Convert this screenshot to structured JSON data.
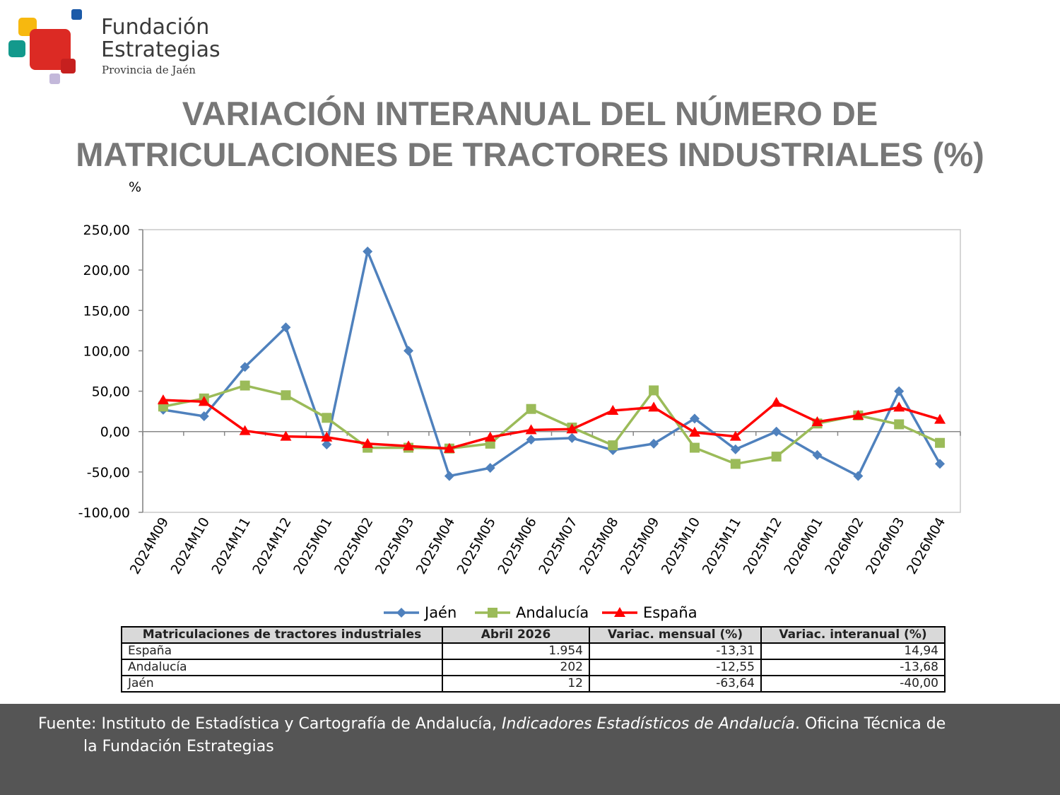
{
  "logo": {
    "line1": "Fundación",
    "line2": "Estrategias",
    "line3": "Provincia de Jaén"
  },
  "title_line1": "VARIACIÓN INTERANUAL DEL NÚMERO DE",
  "title_line2": "MATRICULACIONES DE TRACTORES INDUSTRIALES (%)",
  "chart_data": {
    "type": "line",
    "title": "VARIACIÓN INTERANUAL DEL NÚMERO DE MATRICULACIONES DE TRACTORES INDUSTRIALES (%)",
    "ylabel": "%",
    "xlabel": "",
    "ylim": [
      -100,
      250
    ],
    "yticks": [
      250,
      200,
      150,
      100,
      50,
      0,
      -50,
      -100
    ],
    "ytick_labels": [
      "250,00",
      "200,00",
      "150,00",
      "100,00",
      "50,00",
      "0,00",
      "-50,00",
      "-100,00"
    ],
    "grid": false,
    "legend_position": "bottom",
    "categories": [
      "2024M09",
      "2024M10",
      "2024M11",
      "2024M12",
      "2025M01",
      "2025M02",
      "2025M03",
      "2025M04",
      "2025M05",
      "2025M06",
      "2025M07",
      "2025M08",
      "2025M09",
      "2025M10",
      "2025M11",
      "2025M12",
      "2026M01",
      "2026M02",
      "2026M03",
      "2026M04"
    ],
    "series": [
      {
        "name": "Jaén",
        "color": "#4f81bd",
        "marker": "diamond",
        "values": [
          27,
          19,
          80,
          129,
          -16,
          223,
          100,
          -55,
          -45,
          -10,
          -8,
          -23,
          -15,
          16,
          -22,
          0,
          -29,
          -55,
          50,
          -40
        ]
      },
      {
        "name": "Andalucía",
        "color": "#9bbb59",
        "marker": "square",
        "values": [
          31,
          41,
          57,
          45,
          17,
          -20,
          -20,
          -21,
          -15,
          28,
          5,
          -17,
          51,
          -20,
          -40,
          -31,
          10,
          20,
          9,
          -14
        ]
      },
      {
        "name": "España",
        "color": "#ff0000",
        "marker": "triangle",
        "values": [
          39,
          37,
          1,
          -6,
          -7,
          -15,
          -18,
          -21,
          -7,
          2,
          3,
          26,
          30,
          -1,
          -6,
          36,
          12,
          20,
          30,
          15
        ]
      }
    ]
  },
  "table": {
    "headers": [
      "Matriculaciones de tractores industriales",
      "Abril 2026",
      "Variac. mensual (%)",
      "Variac. interanual (%)"
    ],
    "rows": [
      [
        "España",
        "1.954",
        "-13,31",
        "14,94"
      ],
      [
        "Andalucía",
        "202",
        "-12,55",
        "-13,68"
      ],
      [
        "Jaén",
        "12",
        "-63,64",
        "-40,00"
      ]
    ]
  },
  "footer": {
    "prefix": "Fuente: Instituto de Estadística y Cartografía de Andalucía, ",
    "italic": "Indicadores Estadísticos de Andalucía",
    "suffix": ". Oficina Técnica de",
    "line2": "la Fundación Estrategias"
  }
}
